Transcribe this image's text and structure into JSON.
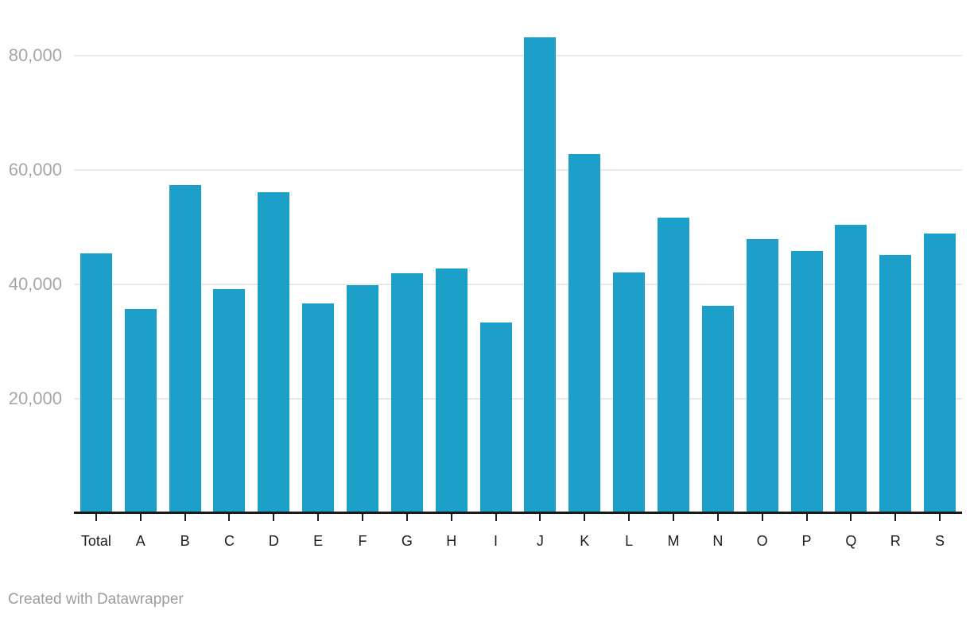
{
  "chart_data": {
    "type": "bar",
    "title": "",
    "xlabel": "",
    "ylabel": "",
    "categories": [
      "Total",
      "A",
      "B",
      "C",
      "D",
      "E",
      "F",
      "G",
      "H",
      "I",
      "J",
      "K",
      "L",
      "M",
      "N",
      "O",
      "P",
      "Q",
      "R",
      "S"
    ],
    "values": [
      45400,
      35700,
      57400,
      39200,
      56200,
      36700,
      39900,
      42000,
      42800,
      33400,
      83200,
      62800,
      42100,
      51700,
      36300,
      48000,
      45900,
      50500,
      45200,
      49000
    ],
    "ylim": [
      0,
      89800
    ],
    "yticks": [
      20000,
      40000,
      60000,
      80000
    ],
    "ytick_labels": [
      "20,000",
      "40,000",
      "60,000",
      "80,000"
    ],
    "grid": "horizontal",
    "legend": "none"
  },
  "footer": {
    "credit": "Created with Datawrapper"
  },
  "colors": {
    "bar": "#1CA0C9",
    "grid": "#e8e8e8",
    "axis": "#1a1a1a",
    "ytick_text": "#a6a6a6",
    "xtick_text": "#1d1d1d",
    "footer_text": "#9c9c9c",
    "background": "#ffffff"
  }
}
